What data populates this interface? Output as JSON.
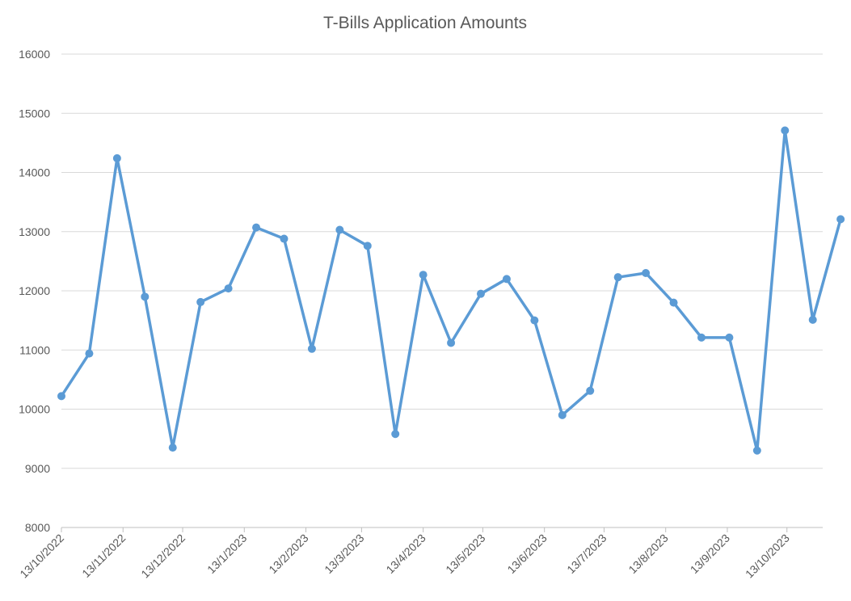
{
  "chart_data": {
    "type": "line",
    "title": "T-Bills Application Amounts",
    "xlabel": "",
    "ylabel": "",
    "ylim": [
      8000,
      16000
    ],
    "yticks": [
      8000,
      9000,
      10000,
      11000,
      12000,
      13000,
      14000,
      15000,
      16000
    ],
    "xlim": [
      "2022-10-13",
      "2023-10-31"
    ],
    "xticks": [
      {
        "date": "2022-10-13",
        "label": "13/10/2022"
      },
      {
        "date": "2022-11-13",
        "label": "13/11/2022"
      },
      {
        "date": "2022-12-13",
        "label": "13/12/2022"
      },
      {
        "date": "2023-01-13",
        "label": "13/1/2023"
      },
      {
        "date": "2023-02-13",
        "label": "13/2/2023"
      },
      {
        "date": "2023-03-13",
        "label": "13/3/2023"
      },
      {
        "date": "2023-04-13",
        "label": "13/4/2023"
      },
      {
        "date": "2023-05-13",
        "label": "13/5/2023"
      },
      {
        "date": "2023-06-13",
        "label": "13/6/2023"
      },
      {
        "date": "2023-07-13",
        "label": "13/7/2023"
      },
      {
        "date": "2023-08-13",
        "label": "13/8/2023"
      },
      {
        "date": "2023-09-13",
        "label": "13/9/2023"
      },
      {
        "date": "2023-10-13",
        "label": "13/10/2023"
      }
    ],
    "grid": true,
    "legend": "none",
    "series": [
      {
        "color": "#5b9bd5",
        "points": [
          {
            "x": "2022-10-13",
            "y": 10220
          },
          {
            "x": "2022-10-27",
            "y": 10940
          },
          {
            "x": "2022-11-10",
            "y": 14240
          },
          {
            "x": "2022-11-24",
            "y": 11900
          },
          {
            "x": "2022-12-08",
            "y": 9350
          },
          {
            "x": "2022-12-22",
            "y": 11810
          },
          {
            "x": "2023-01-05",
            "y": 12040
          },
          {
            "x": "2023-01-19",
            "y": 13070
          },
          {
            "x": "2023-02-02",
            "y": 12880
          },
          {
            "x": "2023-02-16",
            "y": 11020
          },
          {
            "x": "2023-03-02",
            "y": 13030
          },
          {
            "x": "2023-03-16",
            "y": 12760
          },
          {
            "x": "2023-03-30",
            "y": 9580
          },
          {
            "x": "2023-04-13",
            "y": 12270
          },
          {
            "x": "2023-04-27",
            "y": 11120
          },
          {
            "x": "2023-05-12",
            "y": 11950
          },
          {
            "x": "2023-05-25",
            "y": 12200
          },
          {
            "x": "2023-06-08",
            "y": 11500
          },
          {
            "x": "2023-06-22",
            "y": 9900
          },
          {
            "x": "2023-07-06",
            "y": 10310
          },
          {
            "x": "2023-07-20",
            "y": 12230
          },
          {
            "x": "2023-08-03",
            "y": 12300
          },
          {
            "x": "2023-08-17",
            "y": 11800
          },
          {
            "x": "2023-08-31",
            "y": 11210
          },
          {
            "x": "2023-09-14",
            "y": 11210
          },
          {
            "x": "2023-09-28",
            "y": 9300
          },
          {
            "x": "2023-10-12",
            "y": 14710
          },
          {
            "x": "2023-10-26",
            "y": 11510
          },
          {
            "x": "2023-11-09",
            "y": 13210
          }
        ]
      }
    ]
  }
}
